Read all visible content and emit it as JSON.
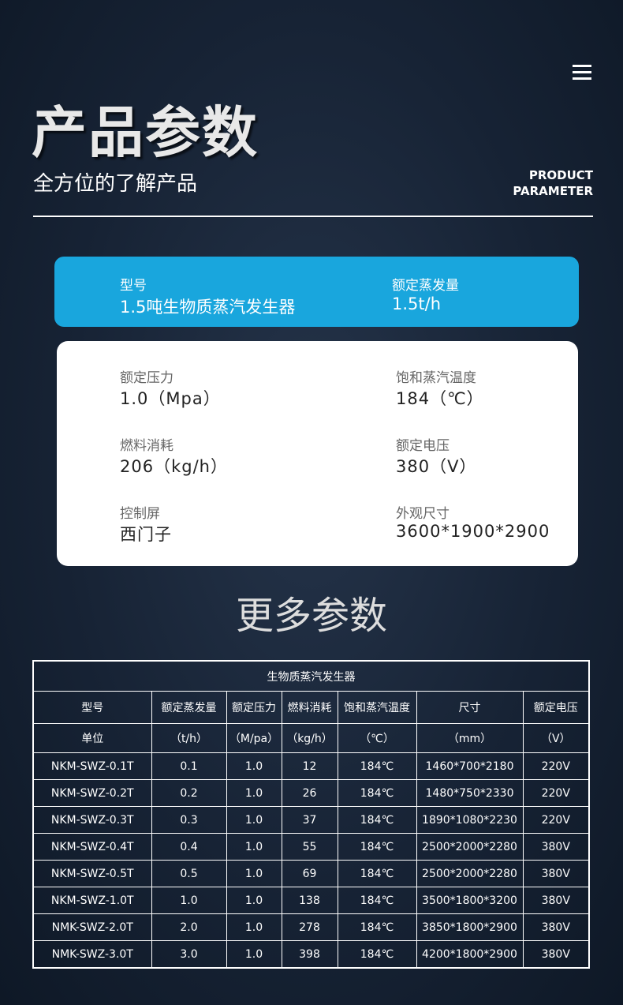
{
  "header": {
    "title": "产品参数",
    "subtitle": "全方位的了解产品",
    "english": [
      "PRODUCT",
      "PARAMETER"
    ]
  },
  "highlight": [
    {
      "label": "型号",
      "value": "1.5吨生物质蒸汽发生器"
    },
    {
      "label": "额定蒸发量",
      "value": "1.5t/h"
    }
  ],
  "specs": [
    {
      "label": "额定压力",
      "value": "1.0（Mpa）"
    },
    {
      "label": "饱和蒸汽温度",
      "value": "184（℃）"
    },
    {
      "label": "燃料消耗",
      "value": "206（kg/h）"
    },
    {
      "label": "额定电压",
      "value": "380（V）"
    },
    {
      "label": "控制屏",
      "value": "西门子"
    },
    {
      "label": "外观尺寸",
      "value": "3600*1900*2900"
    }
  ],
  "section_title": "更多参数",
  "table": {
    "title": "生物质蒸汽发生器",
    "headers": [
      "型号",
      "额定蒸发量",
      "额定压力",
      "燃料消耗",
      "饱和蒸汽温度",
      "尺寸",
      "额定电压"
    ],
    "units": [
      "单位",
      "（t/h）",
      "（M/pa）",
      "（kg/h）",
      "（℃）",
      "（mm）",
      "（V）"
    ],
    "rows": [
      [
        "NKM-SWZ-0.1T",
        "0.1",
        "1.0",
        "12",
        "184℃",
        "1460*700*2180",
        "220V"
      ],
      [
        "NKM-SWZ-0.2T",
        "0.2",
        "1.0",
        "26",
        "184℃",
        "1480*750*2330",
        "220V"
      ],
      [
        "NKM-SWZ-0.3T",
        "0.3",
        "1.0",
        "37",
        "184℃",
        "1890*1080*2230",
        "220V"
      ],
      [
        "NKM-SWZ-0.4T",
        "0.4",
        "1.0",
        "55",
        "184℃",
        "2500*2000*2280",
        "380V"
      ],
      [
        "NKM-SWZ-0.5T",
        "0.5",
        "1.0",
        "69",
        "184℃",
        "2500*2000*2280",
        "380V"
      ],
      [
        "NKM-SWZ-1.0T",
        "1.0",
        "1.0",
        "138",
        "184℃",
        "3500*1800*3200",
        "380V"
      ],
      [
        "NMK-SWZ-2.0T",
        "2.0",
        "1.0",
        "278",
        "184℃",
        "3850*1800*2900",
        "380V"
      ],
      [
        "NMK-SWZ-3.0T",
        "3.0",
        "1.0",
        "398",
        "184℃",
        "4200*1800*2900",
        "380V"
      ]
    ]
  }
}
